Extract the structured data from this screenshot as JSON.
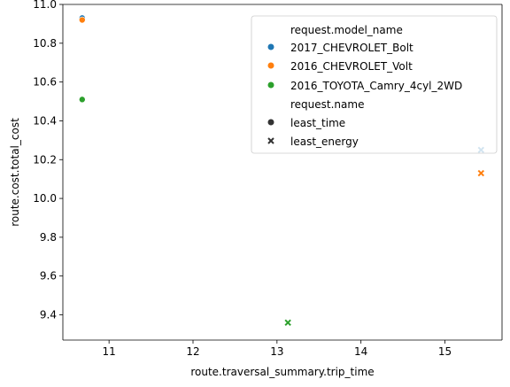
{
  "chart_data": {
    "type": "scatter",
    "xlabel": "route.traversal_summary.trip_time",
    "ylabel": "route.cost.total_cost",
    "xlim": [
      10.45,
      15.68
    ],
    "ylim": [
      9.27,
      11.0
    ],
    "x_ticks": [
      11,
      12,
      13,
      14,
      15
    ],
    "y_ticks": [
      9.4,
      9.6,
      9.8,
      10.0,
      10.2,
      10.4,
      10.6,
      10.8,
      11.0
    ],
    "x_tick_labels": [
      "11",
      "12",
      "13",
      "14",
      "15"
    ],
    "y_tick_labels": [
      "9.4",
      "9.6",
      "9.8",
      "10.0",
      "10.2",
      "10.4",
      "10.6",
      "10.8",
      "11.0"
    ],
    "grid": false,
    "legend_placement": "top-right",
    "legend": {
      "hue_title": "request.model_name",
      "hue_entries": [
        {
          "name": "2017_CHEVROLET_Bolt",
          "color": "#1f77b4"
        },
        {
          "name": "2016_CHEVROLET_Volt",
          "color": "#ff7f0e"
        },
        {
          "name": "2016_TOYOTA_Camry_4cyl_2WD",
          "color": "#2ca02c"
        }
      ],
      "style_title": "request.name",
      "style_entries": [
        {
          "name": "least_time",
          "marker": "circle"
        },
        {
          "name": "least_energy",
          "marker": "x"
        }
      ]
    },
    "series": [
      {
        "model": "2017_CHEVROLET_Bolt",
        "color": "#1f77b4",
        "points": [
          {
            "x": 10.68,
            "y": 10.93,
            "marker": "circle"
          },
          {
            "x": 15.43,
            "y": 10.25,
            "marker": "x"
          }
        ]
      },
      {
        "model": "2016_CHEVROLET_Volt",
        "color": "#ff7f0e",
        "points": [
          {
            "x": 10.68,
            "y": 10.92,
            "marker": "circle"
          },
          {
            "x": 15.43,
            "y": 10.13,
            "marker": "x"
          }
        ]
      },
      {
        "model": "2016_TOYOTA_Camry_4cyl_2WD",
        "color": "#2ca02c",
        "points": [
          {
            "x": 10.68,
            "y": 10.51,
            "marker": "circle"
          },
          {
            "x": 13.13,
            "y": 9.36,
            "marker": "x"
          }
        ]
      }
    ]
  }
}
